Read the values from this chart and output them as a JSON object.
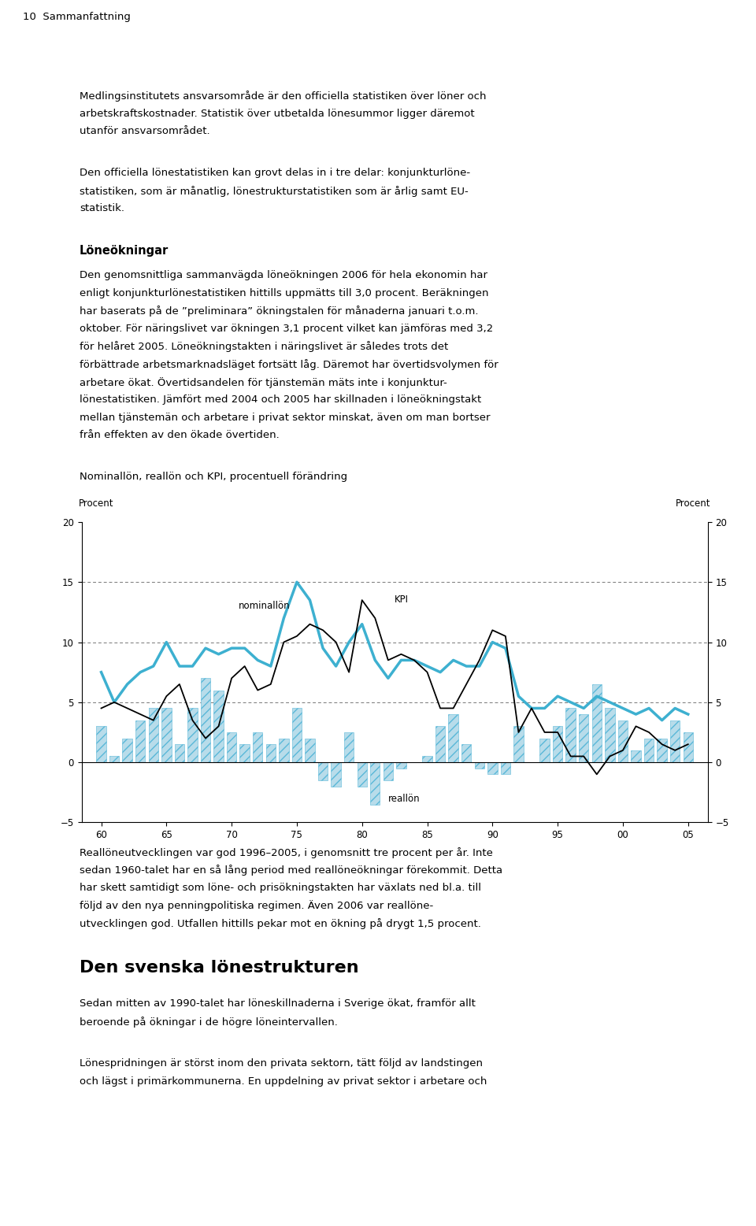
{
  "title": "Nominallön, reallön och KPI, procentuell förändring",
  "ylabel_left": "Procent",
  "ylabel_right": "Procent",
  "ylim": [
    -5,
    20
  ],
  "yticks": [
    -5,
    0,
    5,
    10,
    15,
    20
  ],
  "xtick_labels": [
    "60",
    "65",
    "70",
    "75",
    "80",
    "85",
    "90",
    "95",
    "00",
    "05"
  ],
  "xtick_positions": [
    60,
    65,
    70,
    75,
    80,
    85,
    90,
    95,
    100,
    105
  ],
  "dashed_lines": [
    5,
    10,
    15
  ],
  "background_color": "#ffffff",
  "nominallön_color": "#3db0d0",
  "kpi_color": "#000000",
  "bar_facecolor": "#b8dcea",
  "bar_edgecolor": "#5ab8d8",
  "bar_hatch": "///",
  "nominallön_x": [
    60,
    61,
    62,
    63,
    64,
    65,
    66,
    67,
    68,
    69,
    70,
    71,
    72,
    73,
    74,
    75,
    76,
    77,
    78,
    79,
    80,
    81,
    82,
    83,
    84,
    85,
    86,
    87,
    88,
    89,
    90,
    91,
    92,
    93,
    94,
    95,
    96,
    97,
    98,
    99,
    100,
    101,
    102,
    103,
    104,
    105
  ],
  "nominallön_y": [
    7.5,
    5.0,
    6.5,
    7.5,
    8.0,
    10.0,
    8.0,
    8.0,
    9.5,
    9.0,
    9.5,
    9.5,
    8.5,
    8.0,
    12.0,
    15.0,
    13.5,
    9.5,
    8.0,
    10.0,
    11.5,
    8.5,
    7.0,
    8.5,
    8.5,
    8.0,
    7.5,
    8.5,
    8.0,
    8.0,
    10.0,
    9.5,
    5.5,
    4.5,
    4.5,
    5.5,
    5.0,
    4.5,
    5.5,
    5.0,
    4.5,
    4.0,
    4.5,
    3.5,
    4.5,
    4.0
  ],
  "kpi_x": [
    60,
    61,
    62,
    63,
    64,
    65,
    66,
    67,
    68,
    69,
    70,
    71,
    72,
    73,
    74,
    75,
    76,
    77,
    78,
    79,
    80,
    81,
    82,
    83,
    84,
    85,
    86,
    87,
    88,
    89,
    90,
    91,
    92,
    93,
    94,
    95,
    96,
    97,
    98,
    99,
    100,
    101,
    102,
    103,
    104,
    105
  ],
  "kpi_y": [
    4.5,
    5.0,
    4.5,
    4.0,
    3.5,
    5.5,
    6.5,
    3.5,
    2.0,
    3.0,
    7.0,
    8.0,
    6.0,
    6.5,
    10.0,
    10.5,
    11.5,
    11.0,
    10.0,
    7.5,
    13.5,
    12.0,
    8.5,
    9.0,
    8.5,
    7.5,
    4.5,
    4.5,
    6.5,
    8.5,
    11.0,
    10.5,
    2.5,
    4.5,
    2.5,
    2.5,
    0.5,
    0.5,
    -1.0,
    0.5,
    1.0,
    3.0,
    2.5,
    1.5,
    1.0,
    1.5
  ],
  "reallön_x": [
    60,
    61,
    62,
    63,
    64,
    65,
    66,
    67,
    68,
    69,
    70,
    71,
    72,
    73,
    74,
    75,
    76,
    77,
    78,
    79,
    80,
    81,
    82,
    83,
    84,
    85,
    86,
    87,
    88,
    89,
    90,
    91,
    92,
    93,
    94,
    95,
    96,
    97,
    98,
    99,
    100,
    101,
    102,
    103,
    104,
    105
  ],
  "reallön_y": [
    3.0,
    0.5,
    2.0,
    3.5,
    4.5,
    4.5,
    1.5,
    4.5,
    7.0,
    6.0,
    2.5,
    1.5,
    2.5,
    1.5,
    2.0,
    4.5,
    2.0,
    -1.5,
    -2.0,
    2.5,
    -2.0,
    -3.5,
    -1.5,
    -0.5,
    0.0,
    0.5,
    3.0,
    4.0,
    1.5,
    -0.5,
    -1.0,
    -1.0,
    3.0,
    0.0,
    2.0,
    3.0,
    4.5,
    4.0,
    6.5,
    4.5,
    3.5,
    1.0,
    2.0,
    2.0,
    3.5,
    2.5
  ],
  "header": "10  Sammanfattning",
  "para1_lines": [
    "Medlingsinstitutets ansvarsområde är den officiella statistiken över löner och",
    "arbetskraftskostnader. Statistik över utbetalda lönesummor ligger däremot",
    "utanför ansvarsområdet."
  ],
  "para2_lines": [
    "Den officiella lönestatistiken kan grovt delas in i tre delar: konjunkturlöne-",
    "statistiken, som är månatlig, lönestrukturstatistiken som är årlig samt EU-",
    "statistik."
  ],
  "section_heading": "Löneökningar",
  "para3_lines": [
    "Den genomsnittliga sammanvägda löneökningen 2006 för hela ekonomin har",
    "enligt konjunkturlönestatistiken hittills uppmätts till 3,0 procent. Beräkningen",
    "har baserats på de ”preliminara” ökningstalen för månaderna januari t.o.m.",
    "oktober. För näringslivet var ökningen 3,1 procent vilket kan jämföras med 3,2",
    "för helåret 2005. Löneökningstakten i näringslivet är således trots det",
    "förbättrade arbetsmarknadsläget fortsätt låg. Däremot har övertidsvolymen för",
    "arbetare ökat. Övertidsandelen för tjänstemän mäts inte i konjunktur-",
    "lönestatistiken. Jämfört med 2004 och 2005 har skillnaden i löneökningstakt",
    "mellan tjänstemän och arbetare i privat sektor minskat, även om man bortser",
    "från effekten av den ökade övertiden."
  ],
  "after_chart_lines": [
    "Reallöneutvecklingen var god 1996–2005, i genomsnitt tre procent per år. Inte",
    "sedan 1960-talet har en så lång period med reallöneökningar förekommit. Detta",
    "har skett samtidigt som löne- och prisökningstakten har växlats ned bl.a. till",
    "följd av den nya penningpolitiska regimen. Även 2006 var reallöne-",
    "utvecklingen god. Utfallen hittills pekar mot en ökning på drygt 1,5 procent."
  ],
  "section2_heading": "Den svenska lönestrukturen",
  "para_section2_lines": [
    "Sedan mitten av 1990-talet har löneskillnaderna i Sverige ökat, framför allt",
    "beroende på ökningar i de högre löneintervallen."
  ],
  "para_section3_lines": [
    "Lönespridningen är störst inom den privata sektorn, tätt följd av landstingen",
    "och lägst i primärkommunerna. En uppdelning av privat sektor i arbetare och"
  ]
}
